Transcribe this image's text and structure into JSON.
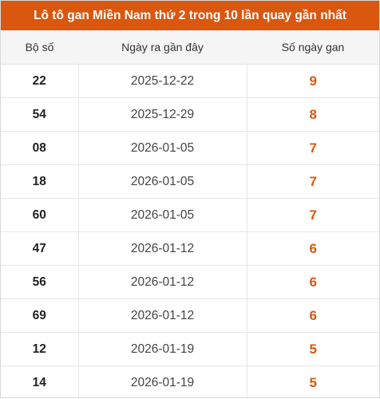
{
  "title": "Lô tô gan Miền Nam thứ 2 trong 10 lần quay gần nhất",
  "columns": [
    "Bộ số",
    "Ngày ra gần đây",
    "Số ngày gan"
  ],
  "rows": [
    {
      "number": "22",
      "date": "2025-12-22",
      "days": "9"
    },
    {
      "number": "54",
      "date": "2025-12-29",
      "days": "8"
    },
    {
      "number": "08",
      "date": "2026-01-05",
      "days": "7"
    },
    {
      "number": "18",
      "date": "2026-01-05",
      "days": "7"
    },
    {
      "number": "60",
      "date": "2026-01-05",
      "days": "7"
    },
    {
      "number": "47",
      "date": "2026-01-12",
      "days": "6"
    },
    {
      "number": "56",
      "date": "2026-01-12",
      "days": "6"
    },
    {
      "number": "69",
      "date": "2026-01-12",
      "days": "6"
    },
    {
      "number": "12",
      "date": "2026-01-19",
      "days": "5"
    },
    {
      "number": "14",
      "date": "2026-01-19",
      "days": "5"
    }
  ],
  "colors": {
    "header_bg": "#d9570f",
    "highlight": "#d9570f",
    "column_header_bg": "#f5f5f5"
  }
}
